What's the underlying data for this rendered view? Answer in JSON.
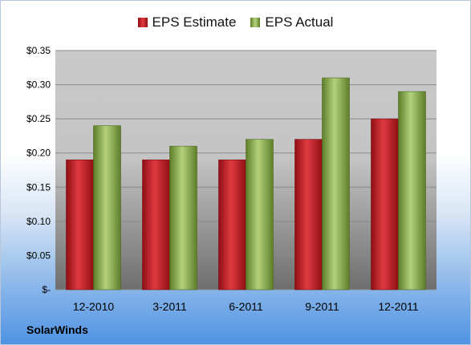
{
  "chart_data": {
    "type": "bar",
    "categories": [
      "12-2010",
      "3-2011",
      "6-2011",
      "9-2011",
      "12-2011"
    ],
    "series": [
      {
        "name": "EPS Estimate",
        "values": [
          0.19,
          0.19,
          0.19,
          0.22,
          0.25
        ],
        "color": "#c8141b"
      },
      {
        "name": "EPS Actual",
        "values": [
          0.24,
          0.21,
          0.22,
          0.31,
          0.29
        ],
        "color": "#8aae48"
      }
    ],
    "yticks": [
      "$-",
      "$0.05",
      "$0.10",
      "$0.15",
      "$0.20",
      "$0.25",
      "$0.30",
      "$0.35"
    ],
    "ylim": [
      0,
      0.35
    ],
    "grid": true,
    "legend": "top-center"
  },
  "company": "SolarWinds"
}
